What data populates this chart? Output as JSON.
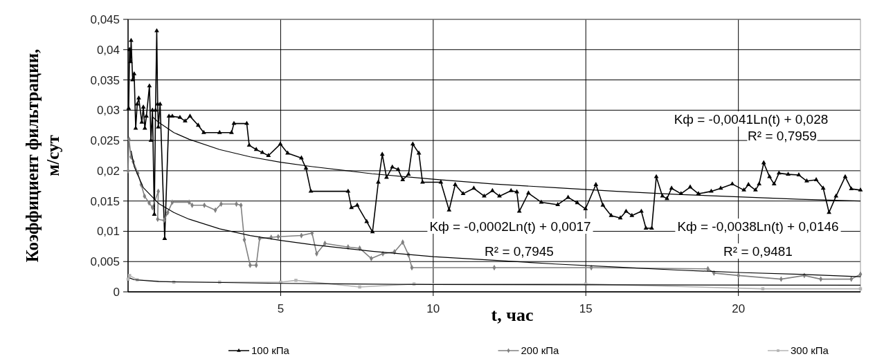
{
  "chart_data": {
    "type": "line",
    "xlabel": "t, час",
    "ylabel": "Коэффициент фильтрации, м/сут",
    "xlim": [
      0,
      24
    ],
    "xticks": [
      5,
      10,
      15,
      20
    ],
    "ylim": [
      0,
      0.045
    ],
    "yticks": [
      {
        "value": 0,
        "label": "0"
      },
      {
        "value": 0.005,
        "label": "0,005"
      },
      {
        "value": 0.01,
        "label": "0,01"
      },
      {
        "value": 0.015,
        "label": "0,015"
      },
      {
        "value": 0.02,
        "label": "0,02"
      },
      {
        "value": 0.025,
        "label": "0,025"
      },
      {
        "value": 0.03,
        "label": "0,03"
      },
      {
        "value": 0.035,
        "label": "0,035"
      },
      {
        "value": 0.04,
        "label": "0,04"
      },
      {
        "value": 0.045,
        "label": "0,045"
      }
    ],
    "grid": true,
    "legend": "bottom",
    "series": [
      {
        "name": "100 кПа",
        "color": "#000000",
        "marker": "triangle",
        "x": [
          0.02,
          0.05,
          0.08,
          0.1,
          0.15,
          0.2,
          0.25,
          0.3,
          0.35,
          0.45,
          0.5,
          0.55,
          0.6,
          0.7,
          0.75,
          0.8,
          0.86,
          0.9,
          0.94,
          0.97,
          0.99,
          1.05,
          1.2,
          1.34,
          1.45,
          1.7,
          1.87,
          2.03,
          2.3,
          2.48,
          3.0,
          3.39,
          3.47,
          3.89,
          3.97,
          4.2,
          4.4,
          4.6,
          4.99,
          5.23,
          5.68,
          5.83,
          5.99,
          7.21,
          7.32,
          7.51,
          7.82,
          8.01,
          8.2,
          8.33,
          8.47,
          8.66,
          8.85,
          9.0,
          9.19,
          9.33,
          9.53,
          9.65,
          10.25,
          10.52,
          10.72,
          10.98,
          11.33,
          11.67,
          11.94,
          12.17,
          12.55,
          12.74,
          12.82,
          13.12,
          13.54,
          14.08,
          14.42,
          14.72,
          14.99,
          15.33,
          15.56,
          15.83,
          16.13,
          16.32,
          16.51,
          16.82,
          16.97,
          17.16,
          17.31,
          17.51,
          17.66,
          17.81,
          18.12,
          18.42,
          18.69,
          19.11,
          19.42,
          19.8,
          20.18,
          20.33,
          20.56,
          20.68,
          20.83,
          21.02,
          21.17,
          21.33,
          21.63,
          21.98,
          22.24,
          22.55,
          22.78,
          22.97,
          23.2,
          23.5,
          23.7,
          24.0
        ],
        "values": [
          0.0303,
          0.04,
          0.038,
          0.0415,
          0.035,
          0.036,
          0.027,
          0.031,
          0.032,
          0.028,
          0.0305,
          0.027,
          0.029,
          0.034,
          0.025,
          0.03,
          0.0128,
          0.03,
          0.0431,
          0.031,
          0.0272,
          0.031,
          0.0088,
          0.029,
          0.029,
          0.0288,
          0.0282,
          0.029,
          0.0275,
          0.0263,
          0.0263,
          0.0263,
          0.0278,
          0.0278,
          0.0242,
          0.0235,
          0.023,
          0.0225,
          0.0244,
          0.0229,
          0.0221,
          0.0204,
          0.0166,
          0.0166,
          0.0139,
          0.0143,
          0.0116,
          0.0099,
          0.0181,
          0.0227,
          0.0189,
          0.0206,
          0.0202,
          0.0185,
          0.0194,
          0.0244,
          0.0229,
          0.0181,
          0.0181,
          0.0135,
          0.0177,
          0.0162,
          0.0171,
          0.0158,
          0.0167,
          0.0158,
          0.0167,
          0.0165,
          0.0133,
          0.0163,
          0.0148,
          0.0144,
          0.0156,
          0.0147,
          0.0137,
          0.0177,
          0.0143,
          0.0126,
          0.0122,
          0.0133,
          0.0126,
          0.0133,
          0.0105,
          0.0105,
          0.019,
          0.0158,
          0.0154,
          0.0171,
          0.0162,
          0.0173,
          0.0162,
          0.0166,
          0.0171,
          0.0178,
          0.0168,
          0.0177,
          0.0168,
          0.0178,
          0.0213,
          0.019,
          0.0178,
          0.0196,
          0.0194,
          0.0193,
          0.0183,
          0.0185,
          0.0171,
          0.0131,
          0.0158,
          0.019,
          0.017,
          0.0168
        ]
      },
      {
        "name": "200 кПа",
        "color": "#808080",
        "marker": "diamond",
        "x": [
          0.0,
          0.03,
          0.1,
          0.17,
          0.32,
          0.43,
          0.54,
          0.69,
          0.8,
          0.99,
          0.97,
          1.18,
          1.3,
          1.45,
          2.0,
          2.1,
          2.5,
          2.86,
          3.05,
          3.55,
          3.7,
          3.81,
          4.0,
          4.2,
          4.31,
          4.69,
          4.92,
          5.68,
          6.03,
          6.18,
          6.45,
          7.21,
          7.59,
          7.97,
          8.35,
          8.73,
          9.0,
          9.19,
          9.3,
          12.0,
          15.18,
          19.0,
          19.2,
          20.0,
          21.4,
          22.16,
          22.7,
          23.7,
          24.0
        ],
        "values": [
          0.02,
          0.0252,
          0.0223,
          0.0215,
          0.0196,
          0.0177,
          0.0158,
          0.0147,
          0.0139,
          0.0166,
          0.012,
          0.0118,
          0.0131,
          0.0148,
          0.0148,
          0.0143,
          0.0143,
          0.0135,
          0.0145,
          0.0145,
          0.0143,
          0.0086,
          0.0044,
          0.0044,
          0.0088,
          0.009,
          0.0091,
          0.0093,
          0.0097,
          0.0063,
          0.008,
          0.0074,
          0.0072,
          0.0055,
          0.0063,
          0.0066,
          0.0082,
          0.0061,
          0.004,
          0.004,
          0.004,
          0.0038,
          0.0031,
          0.0027,
          0.0021,
          0.0027,
          0.0021,
          0.0021,
          0.0029
        ]
      },
      {
        "name": "300 кПа",
        "color": "#b4b4b4",
        "marker": "square",
        "x": [
          0.0,
          0.05,
          0.3,
          1.5,
          3.0,
          5.0,
          5.5,
          7.59,
          9.37,
          15.0,
          20.8,
          24.0
        ],
        "values": [
          0.0021,
          0.0027,
          0.002,
          0.0016,
          0.0016,
          0.0016,
          0.0019,
          0.0008,
          0.0013,
          0.0013,
          0.0005,
          0.0005
        ]
      },
      {
        "type": "line",
        "color": "#000000",
        "marker": "none",
        "x": [
          0.8,
          1,
          1.5,
          2,
          3,
          4,
          5,
          6,
          8,
          10,
          12,
          14,
          16,
          18,
          20,
          22,
          24
        ],
        "values": [
          0.0289,
          0.028,
          0.0263,
          0.0252,
          0.0235,
          0.0223,
          0.0214,
          0.0207,
          0.0195,
          0.0186,
          0.0178,
          0.0172,
          0.0166,
          0.0161,
          0.0157,
          0.0153,
          0.015
        ]
      },
      {
        "type": "line",
        "color": "#000000",
        "marker": "none",
        "x": [
          0.1,
          0.2,
          0.5,
          1,
          1.5,
          2,
          3,
          4,
          5,
          6,
          8,
          10,
          12,
          14,
          16,
          18,
          20,
          22,
          24
        ],
        "values": [
          0.0233,
          0.0207,
          0.0172,
          0.0146,
          0.0131,
          0.012,
          0.0104,
          0.0093,
          0.0085,
          0.0078,
          0.0067,
          0.0058,
          0.0052,
          0.0046,
          0.0041,
          0.0036,
          0.0032,
          0.0029,
          0.0025
        ]
      },
      {
        "type": "line",
        "color": "#000000",
        "marker": "none",
        "x": [
          0.05,
          0.2,
          1,
          5,
          10,
          24
        ],
        "values": [
          0.0023,
          0.002,
          0.0017,
          0.0014,
          0.0012,
          0.0011
        ]
      }
    ],
    "annotations": [
      "Kф = -0,0041Ln(t) + 0,028",
      "R² = 0,7959",
      "Kф = -0,0002Ln(t) + 0,0017",
      "R² = 0,7945",
      "Kф = -0,0038Ln(t) + 0,0146",
      "R² = 0,9481"
    ]
  }
}
